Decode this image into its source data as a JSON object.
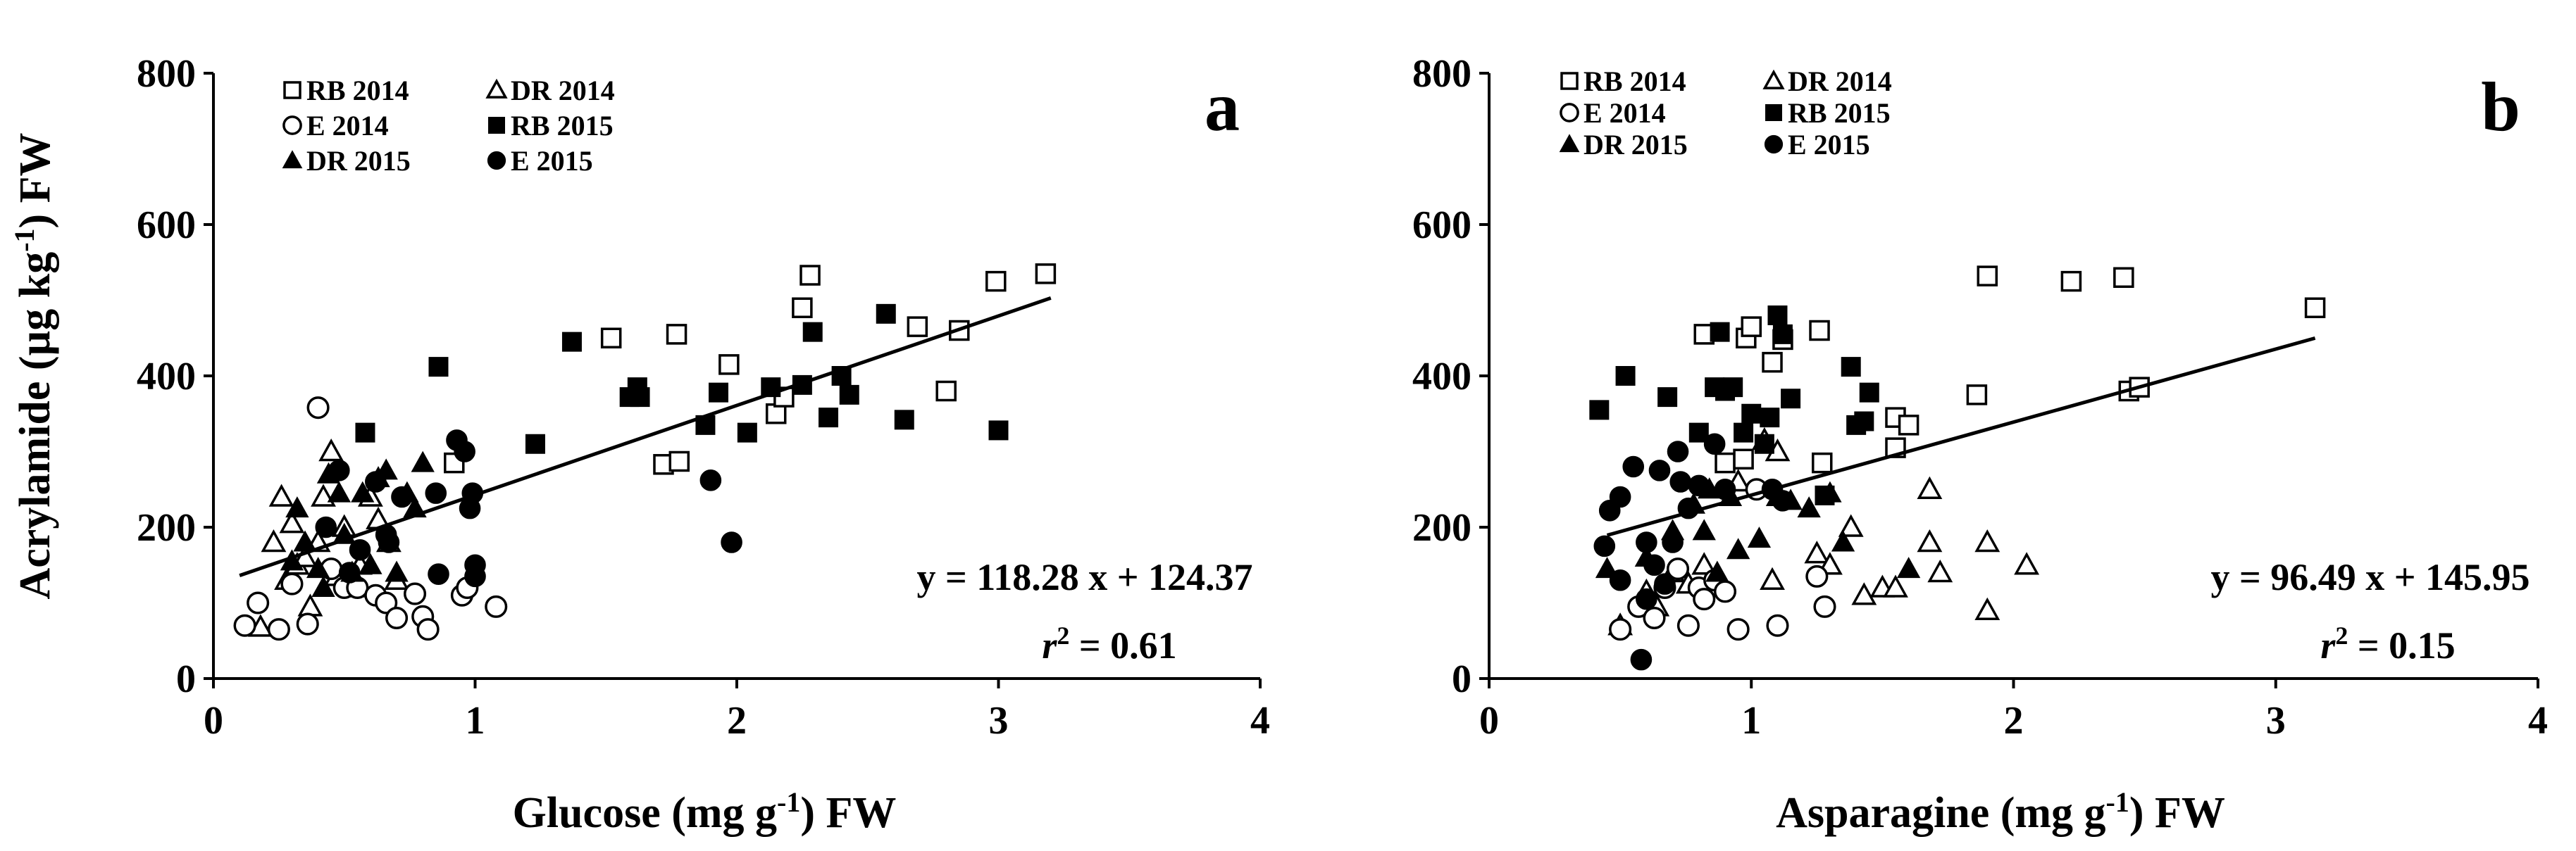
{
  "chart_data": [
    {
      "type": "scatter",
      "panel_label": "a",
      "xlabel_pre": "Glucose (mg g",
      "xlabel_sup": "-1",
      "xlabel_post": ") FW",
      "ylabel_pre": "Acrylamide  (µg kg",
      "ylabel_sup": "-1",
      "ylabel_post": ") FW",
      "xlim": [
        0,
        4
      ],
      "ylim": [
        0,
        800
      ],
      "xticks": [
        "0",
        "1",
        "2",
        "3",
        "4"
      ],
      "yticks": [
        "0",
        "200",
        "400",
        "600",
        "800"
      ],
      "grid": false,
      "legend_position": "top-left",
      "equation": "y = 118.28 x + 124.37",
      "r2_value": " = 0.61",
      "trendline": {
        "slope": 118.28,
        "intercept": 124.37,
        "x_range": [
          0.1,
          3.2
        ]
      },
      "series": [
        {
          "name": "RB 2014",
          "marker": "square-open",
          "points": [
            [
              0.92,
              285
            ],
            [
              1.52,
              450
            ],
            [
              1.77,
              455
            ],
            [
              1.97,
              415
            ],
            [
              1.72,
              283
            ],
            [
              1.78,
              287
            ],
            [
              2.25,
              490
            ],
            [
              2.28,
              533
            ],
            [
              2.15,
              350
            ],
            [
              2.18,
              372
            ],
            [
              2.69,
              465
            ],
            [
              2.85,
              460
            ],
            [
              2.8,
              380
            ],
            [
              2.99,
              525
            ],
            [
              3.18,
              535
            ]
          ]
        },
        {
          "name": "DR 2014",
          "marker": "triangle-open",
          "points": [
            [
              0.18,
              68
            ],
            [
              0.23,
              180
            ],
            [
              0.26,
              240
            ],
            [
              0.28,
              130
            ],
            [
              0.3,
              205
            ],
            [
              0.32,
              150
            ],
            [
              0.35,
              160
            ],
            [
              0.37,
              95
            ],
            [
              0.4,
              180
            ],
            [
              0.42,
              240
            ],
            [
              0.45,
              300
            ],
            [
              0.47,
              135
            ],
            [
              0.5,
              200
            ],
            [
              0.53,
              120
            ],
            [
              0.56,
              150
            ],
            [
              0.6,
              240
            ],
            [
              0.63,
              210
            ],
            [
              0.67,
              180
            ],
            [
              0.7,
              130
            ]
          ]
        },
        {
          "name": "E   2014",
          "marker": "circle-open",
          "points": [
            [
              0.12,
              70
            ],
            [
              0.17,
              100
            ],
            [
              0.25,
              65
            ],
            [
              0.3,
              125
            ],
            [
              0.36,
              72
            ],
            [
              0.4,
              358
            ],
            [
              0.45,
              145
            ],
            [
              0.5,
              120
            ],
            [
              0.55,
              120
            ],
            [
              0.62,
              110
            ],
            [
              0.66,
              100
            ],
            [
              0.7,
              80
            ],
            [
              0.77,
              112
            ],
            [
              0.8,
              82
            ],
            [
              0.82,
              65
            ],
            [
              0.95,
              110
            ],
            [
              1.08,
              95
            ],
            [
              0.97,
              120
            ]
          ]
        },
        {
          "name": "RB 2015",
          "marker": "square-filled",
          "points": [
            [
              0.58,
              325
            ],
            [
              0.86,
              412
            ],
            [
              1.23,
              310
            ],
            [
              1.37,
              445
            ],
            [
              1.59,
              372
            ],
            [
              1.62,
              385
            ],
            [
              1.63,
              372
            ],
            [
              1.88,
              335
            ],
            [
              1.93,
              378
            ],
            [
              2.04,
              325
            ],
            [
              2.13,
              385
            ],
            [
              2.25,
              388
            ],
            [
              2.29,
              458
            ],
            [
              2.35,
              345
            ],
            [
              2.4,
              400
            ],
            [
              2.43,
              375
            ],
            [
              2.57,
              482
            ],
            [
              2.64,
              342
            ],
            [
              3.0,
              328
            ]
          ]
        },
        {
          "name": "DR 2015",
          "marker": "triangle-filled",
          "points": [
            [
              0.3,
              155
            ],
            [
              0.32,
              225
            ],
            [
              0.35,
              180
            ],
            [
              0.4,
              145
            ],
            [
              0.42,
              120
            ],
            [
              0.44,
              270
            ],
            [
              0.48,
              245
            ],
            [
              0.5,
              190
            ],
            [
              0.53,
              140
            ],
            [
              0.57,
              245
            ],
            [
              0.6,
              150
            ],
            [
              0.63,
              265
            ],
            [
              0.66,
              275
            ],
            [
              0.7,
              140
            ],
            [
              0.74,
              245
            ],
            [
              0.8,
              285
            ],
            [
              0.77,
              225
            ]
          ]
        },
        {
          "name": "E    2015",
          "marker": "circle-filled",
          "points": [
            [
              0.43,
              200
            ],
            [
              0.48,
              275
            ],
            [
              0.52,
              140
            ],
            [
              0.56,
              170
            ],
            [
              0.62,
              260
            ],
            [
              0.66,
              190
            ],
            [
              0.67,
              180
            ],
            [
              0.72,
              240
            ],
            [
              0.85,
              245
            ],
            [
              0.86,
              138
            ],
            [
              0.93,
              315
            ],
            [
              0.96,
              300
            ],
            [
              0.98,
              225
            ],
            [
              0.99,
              245
            ],
            [
              1.0,
              135
            ],
            [
              1.0,
              150
            ],
            [
              1.9,
              262
            ],
            [
              1.98,
              180
            ]
          ]
        }
      ]
    },
    {
      "type": "scatter",
      "panel_label": "b",
      "xlabel_pre": "Asparagine  (mg g",
      "xlabel_sup": "-1",
      "xlabel_post": ") FW",
      "xlim": [
        0,
        4
      ],
      "ylim": [
        0,
        800
      ],
      "xticks": [
        "0",
        "1",
        "2",
        "3",
        "4"
      ],
      "yticks": [
        "0",
        "200",
        "400",
        "600",
        "800"
      ],
      "grid": false,
      "legend_position": "top-left",
      "equation": "y = 96.49 x + 145.95",
      "r2_value": " = 0.15",
      "trendline": {
        "slope": 96.49,
        "intercept": 145.95,
        "x_range": [
          0.45,
          3.15
        ]
      },
      "series": [
        {
          "name": "RB 2014",
          "marker": "square-open",
          "points": [
            [
              0.82,
              455
            ],
            [
              0.9,
              285
            ],
            [
              0.97,
              290
            ],
            [
              0.98,
              450
            ],
            [
              1.0,
              465
            ],
            [
              1.08,
              418
            ],
            [
              1.12,
              448
            ],
            [
              1.26,
              460
            ],
            [
              1.27,
              285
            ],
            [
              1.55,
              305
            ],
            [
              1.55,
              345
            ],
            [
              1.6,
              335
            ],
            [
              1.86,
              375
            ],
            [
              1.9,
              532
            ],
            [
              2.22,
              525
            ],
            [
              2.42,
              530
            ],
            [
              2.44,
              380
            ],
            [
              2.48,
              385
            ],
            [
              3.15,
              490
            ]
          ]
        },
        {
          "name": "DR 2014",
          "marker": "triangle-open",
          "points": [
            [
              0.5,
              70
            ],
            [
              0.6,
              115
            ],
            [
              0.64,
              95
            ],
            [
              0.7,
              140
            ],
            [
              0.76,
              125
            ],
            [
              0.82,
              150
            ],
            [
              0.95,
              260
            ],
            [
              1.05,
              315
            ],
            [
              1.08,
              130
            ],
            [
              1.1,
              300
            ],
            [
              1.25,
              165
            ],
            [
              1.3,
              150
            ],
            [
              1.38,
              200
            ],
            [
              1.43,
              110
            ],
            [
              1.5,
              120
            ],
            [
              1.55,
              120
            ],
            [
              1.68,
              180
            ],
            [
              1.68,
              250
            ],
            [
              1.72,
              140
            ],
            [
              1.9,
              90
            ],
            [
              1.9,
              180
            ],
            [
              2.05,
              150
            ]
          ]
        },
        {
          "name": "E   2014",
          "marker": "circle-open",
          "points": [
            [
              0.5,
              65
            ],
            [
              0.57,
              95
            ],
            [
              0.63,
              80
            ],
            [
              0.67,
              120
            ],
            [
              0.72,
              145
            ],
            [
              0.76,
              70
            ],
            [
              0.8,
              120
            ],
            [
              0.82,
              105
            ],
            [
              0.86,
              130
            ],
            [
              0.9,
              115
            ],
            [
              0.95,
              65
            ],
            [
              1.02,
              250
            ],
            [
              1.1,
              70
            ],
            [
              1.25,
              135
            ],
            [
              1.28,
              95
            ]
          ]
        },
        {
          "name": "RB 2015",
          "marker": "square-filled",
          "points": [
            [
              0.42,
              355
            ],
            [
              0.52,
              400
            ],
            [
              0.68,
              372
            ],
            [
              0.8,
              325
            ],
            [
              0.86,
              385
            ],
            [
              0.88,
              458
            ],
            [
              0.9,
              380
            ],
            [
              0.93,
              385
            ],
            [
              0.97,
              325
            ],
            [
              1.0,
              350
            ],
            [
              1.05,
              310
            ],
            [
              1.07,
              345
            ],
            [
              1.1,
              480
            ],
            [
              1.12,
              455
            ],
            [
              1.15,
              370
            ],
            [
              1.28,
              242
            ],
            [
              1.38,
              412
            ],
            [
              1.4,
              335
            ],
            [
              1.43,
              340
            ],
            [
              1.45,
              378
            ]
          ]
        },
        {
          "name": "DR 2015",
          "marker": "triangle-filled",
          "points": [
            [
              0.45,
              145
            ],
            [
              0.6,
              160
            ],
            [
              0.7,
              195
            ],
            [
              0.78,
              230
            ],
            [
              0.82,
              195
            ],
            [
              0.84,
              250
            ],
            [
              0.87,
              140
            ],
            [
              0.92,
              240
            ],
            [
              0.95,
              170
            ],
            [
              1.03,
              185
            ],
            [
              1.1,
              240
            ],
            [
              1.15,
              235
            ],
            [
              1.22,
              225
            ],
            [
              1.3,
              245
            ],
            [
              1.35,
              180
            ],
            [
              1.6,
              145
            ]
          ]
        },
        {
          "name": "E    2015",
          "marker": "circle-filled",
          "points": [
            [
              0.44,
              175
            ],
            [
              0.46,
              222
            ],
            [
              0.5,
              240
            ],
            [
              0.5,
              130
            ],
            [
              0.55,
              280
            ],
            [
              0.58,
              25
            ],
            [
              0.6,
              105
            ],
            [
              0.6,
              180
            ],
            [
              0.63,
              150
            ],
            [
              0.65,
              275
            ],
            [
              0.67,
              125
            ],
            [
              0.7,
              180
            ],
            [
              0.72,
              300
            ],
            [
              0.73,
              260
            ],
            [
              0.76,
              225
            ],
            [
              0.8,
              255
            ],
            [
              0.86,
              310
            ],
            [
              0.9,
              250
            ],
            [
              1.08,
              250
            ],
            [
              1.12,
              235
            ]
          ]
        }
      ]
    }
  ]
}
